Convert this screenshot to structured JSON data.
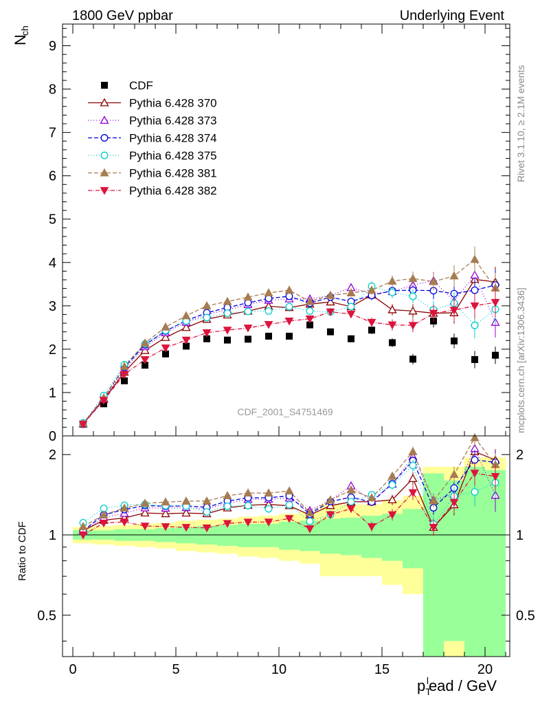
{
  "header": {
    "left": "1800 GeV ppbar",
    "right": "Underlying Event",
    "side_top": "Rivet 3.1.10, ≥ 2.1M events",
    "side_bottom": "mcplots.cern.ch [arXiv:1306.3436]",
    "watermark": "CDF_2001_S4751469"
  },
  "chart_data": [
    {
      "type": "scatter",
      "panel": "main",
      "ylabel": "N",
      "ylabel_sub": "ch",
      "xlim": [
        -0.5,
        21.2
      ],
      "ylim": [
        0,
        9.5
      ],
      "yticks": [
        0,
        1,
        2,
        3,
        4,
        5,
        6,
        7,
        8,
        9
      ],
      "x": [
        0.5,
        1.5,
        2.5,
        3.5,
        4.5,
        5.5,
        6.5,
        7.5,
        8.5,
        9.5,
        10.5,
        11.5,
        12.5,
        13.5,
        14.5,
        15.5,
        16.5,
        17.5,
        18.5,
        19.5,
        20.5
      ],
      "series": [
        {
          "name": "CDF",
          "color": "#000000",
          "marker": "square",
          "dash": "none",
          "values": [
            0.27,
            0.74,
            1.27,
            1.63,
            1.89,
            2.07,
            2.24,
            2.21,
            2.23,
            2.3,
            2.3,
            2.56,
            2.4,
            2.24,
            2.44,
            2.15,
            1.77,
            2.65,
            2.19,
            1.76,
            1.86
          ],
          "errors": [
            0.02,
            0.02,
            0.03,
            0.03,
            0.04,
            0.04,
            0.05,
            0.05,
            0.05,
            0.06,
            0.06,
            0.07,
            0.07,
            0.08,
            0.09,
            0.1,
            0.12,
            0.15,
            0.17,
            0.2,
            0.2
          ]
        },
        {
          "name": "Pythia 6.428 370",
          "color": "#8b0000",
          "marker": "triangle-open",
          "dash": "solid",
          "values": [
            0.28,
            0.84,
            1.47,
            1.97,
            2.27,
            2.5,
            2.69,
            2.79,
            2.88,
            2.99,
            2.96,
            3.04,
            3.09,
            2.98,
            3.25,
            2.91,
            2.88,
            2.83,
            2.84,
            3.61,
            3.55
          ],
          "errors": [
            0.01,
            0.01,
            0.02,
            0.02,
            0.03,
            0.03,
            0.04,
            0.04,
            0.05,
            0.05,
            0.06,
            0.07,
            0.08,
            0.09,
            0.11,
            0.13,
            0.16,
            0.2,
            0.25,
            0.3,
            0.35
          ]
        },
        {
          "name": "Pythia 6.428 373",
          "color": "#9400d3",
          "marker": "triangle-open",
          "dash": "1,3",
          "values": [
            0.28,
            0.86,
            1.53,
            2.06,
            2.38,
            2.62,
            2.8,
            2.91,
            3.03,
            3.13,
            3.16,
            3.16,
            3.24,
            3.42,
            3.28,
            3.33,
            3.48,
            3.58,
            3.11,
            3.71,
            2.62
          ],
          "errors": [
            0.01,
            0.01,
            0.02,
            0.02,
            0.03,
            0.03,
            0.04,
            0.04,
            0.05,
            0.05,
            0.06,
            0.07,
            0.08,
            0.09,
            0.11,
            0.13,
            0.16,
            0.2,
            0.25,
            0.3,
            0.35
          ]
        },
        {
          "name": "Pythia 6.428 374",
          "color": "#0000dd",
          "marker": "circle-open",
          "dash": "6,3",
          "values": [
            0.28,
            0.88,
            1.58,
            2.1,
            2.42,
            2.66,
            2.84,
            2.96,
            3.07,
            3.17,
            3.22,
            3.06,
            3.2,
            3.1,
            3.24,
            3.35,
            3.36,
            3.35,
            3.28,
            3.36,
            3.48
          ],
          "errors": [
            0.01,
            0.01,
            0.02,
            0.02,
            0.03,
            0.03,
            0.04,
            0.04,
            0.05,
            0.05,
            0.06,
            0.07,
            0.08,
            0.09,
            0.11,
            0.13,
            0.16,
            0.2,
            0.25,
            0.3,
            0.35
          ]
        },
        {
          "name": "Pythia 6.428 375",
          "color": "#00cccc",
          "marker": "circle-open",
          "dash": "1,3",
          "values": [
            0.3,
            0.93,
            1.64,
            2.12,
            2.43,
            2.65,
            2.73,
            2.83,
            2.87,
            2.88,
            2.98,
            2.88,
            2.86,
            2.98,
            3.45,
            3.31,
            3.22,
            2.91,
            3.06,
            2.55,
            2.92
          ],
          "errors": [
            0.01,
            0.01,
            0.02,
            0.02,
            0.03,
            0.03,
            0.04,
            0.04,
            0.05,
            0.05,
            0.06,
            0.07,
            0.08,
            0.09,
            0.11,
            0.13,
            0.16,
            0.2,
            0.25,
            0.3,
            0.35
          ]
        },
        {
          "name": "Pythia 6.428 381",
          "color": "#a67c52",
          "marker": "triangle-filled",
          "dash": "6,3",
          "values": [
            0.29,
            0.88,
            1.6,
            2.14,
            2.51,
            2.77,
            3.0,
            3.1,
            3.2,
            3.3,
            3.36,
            3.1,
            3.24,
            3.3,
            3.36,
            3.57,
            3.63,
            3.56,
            3.69,
            4.07,
            3.41
          ],
          "errors": [
            0.01,
            0.01,
            0.02,
            0.02,
            0.03,
            0.03,
            0.04,
            0.04,
            0.05,
            0.05,
            0.06,
            0.07,
            0.08,
            0.09,
            0.11,
            0.13,
            0.16,
            0.2,
            0.25,
            0.3,
            0.35
          ]
        },
        {
          "name": "Pythia 6.428 382",
          "color": "#dc143c",
          "marker": "triangle-down-filled",
          "dash": "6,2,1,2",
          "values": [
            0.27,
            0.82,
            1.42,
            1.76,
            2.03,
            2.21,
            2.38,
            2.44,
            2.49,
            2.57,
            2.65,
            2.7,
            2.86,
            2.81,
            2.62,
            2.56,
            2.55,
            2.83,
            2.9,
            3.0,
            3.08
          ],
          "errors": [
            0.01,
            0.01,
            0.02,
            0.02,
            0.03,
            0.03,
            0.04,
            0.04,
            0.05,
            0.05,
            0.06,
            0.07,
            0.08,
            0.09,
            0.11,
            0.13,
            0.16,
            0.2,
            0.25,
            0.3,
            0.35
          ]
        }
      ]
    },
    {
      "type": "scatter",
      "panel": "ratio",
      "ylabel": "Ratio to CDF",
      "xlabel_main": "p",
      "xlabel_sub": "T",
      "xlabel_sup": "l",
      "xlabel_rest": "ead / GeV",
      "xlim": [
        -0.5,
        21.2
      ],
      "ylim": [
        0.35,
        2.35
      ],
      "yticks": [
        0.5,
        1,
        2
      ],
      "xticks": [
        0,
        5,
        10,
        15,
        20
      ],
      "band_green_half": [
        0.04,
        0.04,
        0.05,
        0.05,
        0.06,
        0.07,
        0.08,
        0.09,
        0.1,
        0.1,
        0.12,
        0.13,
        0.15,
        0.16,
        0.18,
        0.2,
        0.25,
        0.7,
        0.6,
        0.8,
        0.75
      ],
      "band_yellow_half": [
        0.07,
        0.08,
        0.09,
        0.1,
        0.11,
        0.13,
        0.14,
        0.15,
        0.17,
        0.18,
        0.2,
        0.22,
        0.3,
        0.3,
        0.3,
        0.35,
        0.4,
        0.8,
        0.8,
        0.95,
        0.95
      ],
      "series_colors": [
        "#8b0000",
        "#9400d3",
        "#0000dd",
        "#00cccc",
        "#a67c52",
        "#dc143c"
      ]
    }
  ]
}
